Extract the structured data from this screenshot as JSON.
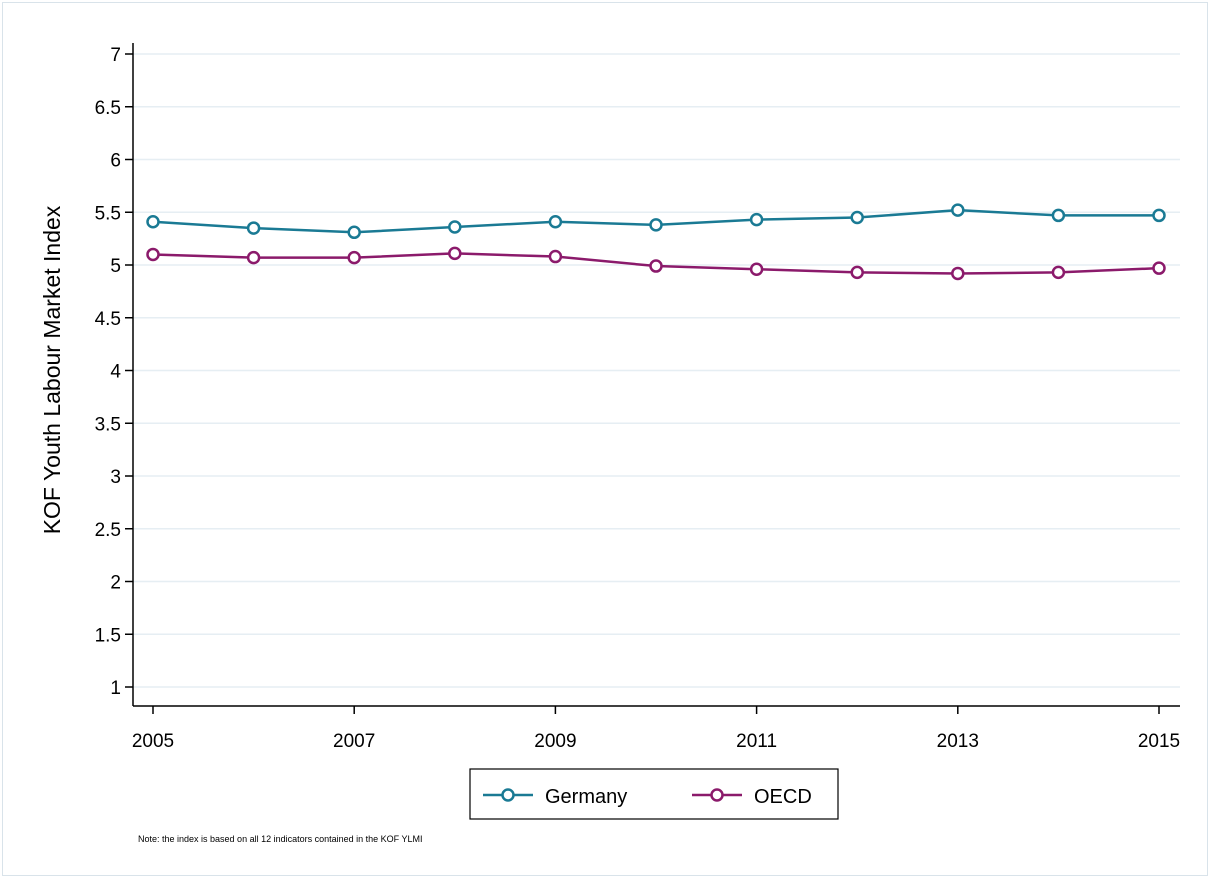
{
  "chart_data": {
    "type": "line",
    "title": "",
    "xlabel": "",
    "ylabel": "KOF Youth Labour Market Index",
    "x": [
      2005,
      2006,
      2007,
      2008,
      2009,
      2010,
      2011,
      2012,
      2013,
      2014,
      2015
    ],
    "xticks": [
      2005,
      2007,
      2009,
      2011,
      2013,
      2015
    ],
    "xlim": [
      2005,
      2015
    ],
    "yticks": [
      1,
      1.5,
      2,
      2.5,
      3,
      3.5,
      4,
      4.5,
      5,
      5.5,
      6,
      6.5,
      7
    ],
    "ylim": [
      1,
      7
    ],
    "grid": true,
    "legend_position": "bottom",
    "series": [
      {
        "name": "Germany",
        "color": "#1a7a94",
        "values": [
          5.41,
          5.35,
          5.31,
          5.36,
          5.41,
          5.38,
          5.43,
          5.45,
          5.52,
          5.47,
          5.47
        ]
      },
      {
        "name": "OECD",
        "color": "#8b1a6b",
        "values": [
          5.1,
          5.07,
          5.07,
          5.11,
          5.08,
          4.99,
          4.96,
          4.93,
          4.92,
          4.93,
          4.97
        ]
      }
    ],
    "note": "Note: the index is based on all 12 indicators contained in the KOF YLMI"
  }
}
